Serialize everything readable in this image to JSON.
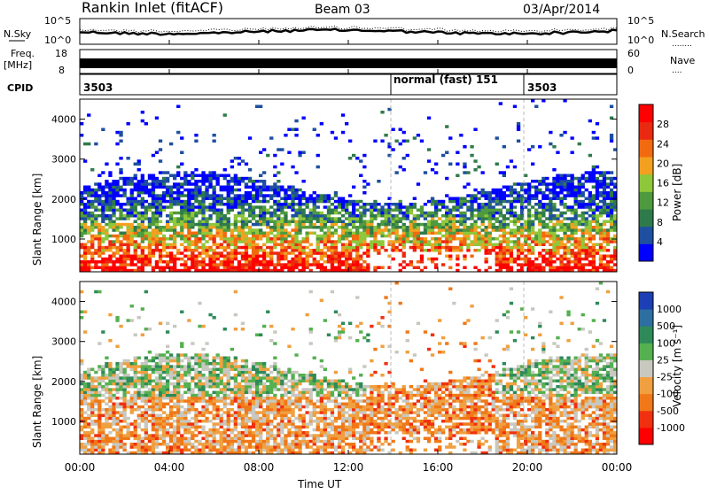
{
  "header": {
    "station": "Rankin Inlet (fitACF)",
    "beam": "Beam 03",
    "date": "03/Apr/2014"
  },
  "noise_panel": {
    "left_label": "N.Sky",
    "left_ticks": [
      "10^5",
      "10^0"
    ],
    "right_ticks": [
      "10^5",
      "10^0"
    ],
    "right_label": "N.Search",
    "right_legend_dots": "........"
  },
  "freq_panel": {
    "left_label_top": "Freq.",
    "left_label_bottom": "[MHz]",
    "left_ticks": [
      "18",
      "8"
    ],
    "right_ticks": [
      "60",
      "0"
    ],
    "right_label": "Nave",
    "right_legend_dots": "...."
  },
  "cpid_panel": {
    "label": "CPID",
    "segments": [
      "3503",
      "normal (fast) 151",
      "3503"
    ]
  },
  "x_axis": {
    "ticks": [
      "00:00",
      "04:00",
      "08:00",
      "12:00",
      "16:00",
      "20:00",
      "00:00"
    ],
    "label": "Time UT"
  },
  "y_axis": {
    "label": "Slant Range [km]",
    "ticks": [
      "1000",
      "2000",
      "3000",
      "4000"
    ]
  },
  "colorbars": {
    "power": {
      "label": "Power [dB]",
      "ticks": [
        "4",
        "8",
        "12",
        "16",
        "20",
        "24",
        "28"
      ],
      "colors": [
        "#0000ff",
        "#1e4fa0",
        "#2f7a4a",
        "#4e9a3e",
        "#8fc73a",
        "#f3a020",
        "#f26a10",
        "#ea2a10",
        "#ff0000"
      ]
    },
    "velocity": {
      "label": "Velocity [m s⁻¹]",
      "ticks": [
        "1000",
        "500",
        "100",
        "25",
        "-25",
        "-100",
        "-500",
        "-1000"
      ],
      "colors": [
        "#1c3fb5",
        "#2d6fa0",
        "#2f8a5a",
        "#55b050",
        "#c8c8c0",
        "#f0a040",
        "#f07818",
        "#f03010",
        "#ff0000"
      ]
    }
  },
  "chart_data": [
    {
      "type": "heatmap",
      "title": "",
      "xlabel": "",
      "ylabel": "Slant Range [km]",
      "xlim": [
        0,
        24
      ],
      "ylim": [
        180,
        4500
      ],
      "colorbar_label": "Power [dB]",
      "colorbar_range": [
        0,
        30
      ]
    },
    {
      "type": "heatmap",
      "title": "",
      "xlabel": "Time UT",
      "ylabel": "Slant Range [km]",
      "xlim": [
        0,
        24
      ],
      "ylim": [
        180,
        4500
      ],
      "colorbar_label": "Velocity [m s⁻¹]",
      "colorbar_range": [
        -1000,
        1000
      ]
    }
  ]
}
